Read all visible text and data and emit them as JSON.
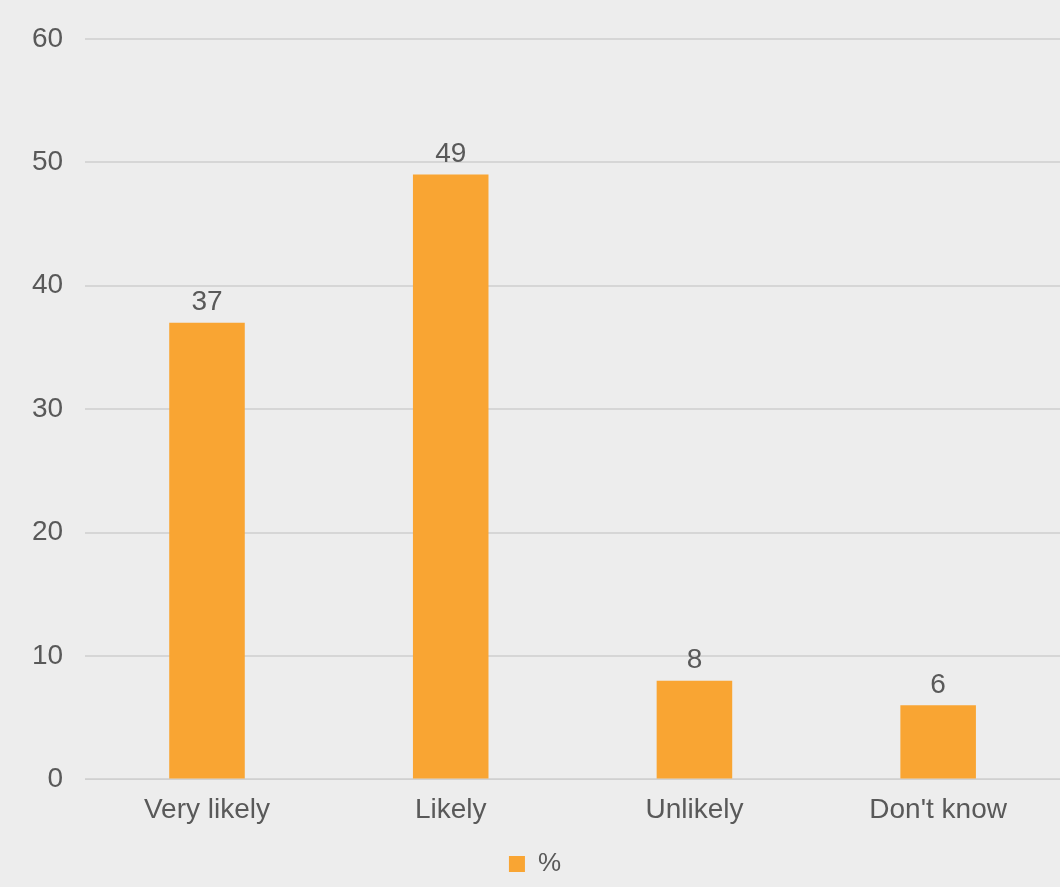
{
  "chart_data": {
    "type": "bar",
    "categories": [
      "Very likely",
      "Likely",
      "Unlikely",
      "Don't know"
    ],
    "series": [
      {
        "name": "%",
        "color": "#f9a533",
        "values": [
          37,
          49,
          8,
          6
        ]
      }
    ],
    "ylim": [
      0,
      60
    ],
    "yticks": [
      0,
      10,
      20,
      30,
      40,
      50,
      60
    ],
    "grid": "y",
    "legend": "bottom",
    "data_labels": true
  }
}
